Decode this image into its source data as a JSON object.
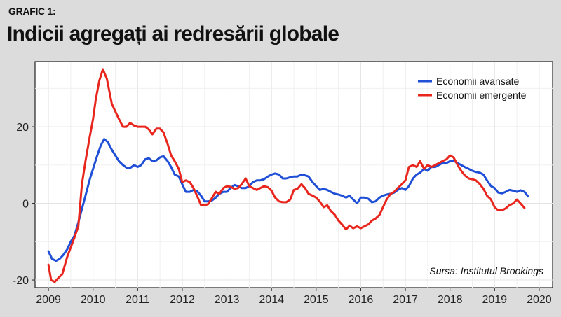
{
  "header": {
    "kicker": "GRAFIC 1:",
    "title": "Indicii agregați ai redresării globale"
  },
  "chart_data": {
    "type": "line",
    "title": "Indicii agregați ai redresării globale",
    "xlabel": "",
    "ylabel": "",
    "xlim": [
      2008.7,
      2020.3
    ],
    "ylim": [
      -22,
      37
    ],
    "x_ticks": [
      "2009",
      "2010",
      "2011",
      "2012",
      "2013",
      "2014",
      "2015",
      "2016",
      "2017",
      "2018",
      "2019",
      "2020"
    ],
    "y_ticks": [
      "-20",
      "0",
      "20"
    ],
    "grid": true,
    "legend_position": "top-right",
    "source": "Sursa: Institutul Brookings",
    "series": [
      {
        "name": "Economii avansate",
        "color": "#1f4fd6",
        "points": [
          [
            2009.0,
            -12.5
          ],
          [
            2009.08,
            -14.5
          ],
          [
            2009.17,
            -15
          ],
          [
            2009.25,
            -14.5
          ],
          [
            2009.33,
            -13.5
          ],
          [
            2009.42,
            -12
          ],
          [
            2009.5,
            -10
          ],
          [
            2009.58,
            -8.5
          ],
          [
            2009.67,
            -5
          ],
          [
            2009.75,
            -1.5
          ],
          [
            2009.83,
            2
          ],
          [
            2009.92,
            6
          ],
          [
            2010.0,
            9
          ],
          [
            2010.08,
            12
          ],
          [
            2010.17,
            15
          ],
          [
            2010.25,
            16.8
          ],
          [
            2010.33,
            16
          ],
          [
            2010.42,
            14
          ],
          [
            2010.5,
            12.5
          ],
          [
            2010.58,
            11
          ],
          [
            2010.67,
            10
          ],
          [
            2010.75,
            9.3
          ],
          [
            2010.83,
            9.2
          ],
          [
            2010.92,
            10
          ],
          [
            2011.0,
            9.5
          ],
          [
            2011.08,
            10
          ],
          [
            2011.17,
            11.5
          ],
          [
            2011.25,
            11.8
          ],
          [
            2011.33,
            11
          ],
          [
            2011.42,
            11.2
          ],
          [
            2011.5,
            12
          ],
          [
            2011.58,
            12.3
          ],
          [
            2011.67,
            11
          ],
          [
            2011.75,
            9.5
          ],
          [
            2011.83,
            7.5
          ],
          [
            2011.92,
            7
          ],
          [
            2012.0,
            5
          ],
          [
            2012.08,
            3
          ],
          [
            2012.17,
            3
          ],
          [
            2012.25,
            3.5
          ],
          [
            2012.33,
            3.2
          ],
          [
            2012.42,
            2
          ],
          [
            2012.5,
            0.5
          ],
          [
            2012.58,
            0.5
          ],
          [
            2012.67,
            0.8
          ],
          [
            2012.75,
            1.5
          ],
          [
            2012.83,
            2.5
          ],
          [
            2012.92,
            3
          ],
          [
            2013.0,
            3
          ],
          [
            2013.08,
            4
          ],
          [
            2013.17,
            4.8
          ],
          [
            2013.25,
            4.5
          ],
          [
            2013.33,
            4
          ],
          [
            2013.42,
            4
          ],
          [
            2013.5,
            4.5
          ],
          [
            2013.58,
            5.5
          ],
          [
            2013.67,
            6
          ],
          [
            2013.75,
            6
          ],
          [
            2013.83,
            6.3
          ],
          [
            2013.92,
            7
          ],
          [
            2014.0,
            7.5
          ],
          [
            2014.08,
            7.8
          ],
          [
            2014.17,
            7.5
          ],
          [
            2014.25,
            6.5
          ],
          [
            2014.33,
            6.5
          ],
          [
            2014.42,
            6.8
          ],
          [
            2014.5,
            7
          ],
          [
            2014.58,
            7
          ],
          [
            2014.67,
            7.5
          ],
          [
            2014.75,
            7.3
          ],
          [
            2014.83,
            7
          ],
          [
            2014.92,
            5.5
          ],
          [
            2015.0,
            4.5
          ],
          [
            2015.08,
            3.5
          ],
          [
            2015.17,
            3.8
          ],
          [
            2015.25,
            3.5
          ],
          [
            2015.33,
            3
          ],
          [
            2015.42,
            2.5
          ],
          [
            2015.5,
            2.3
          ],
          [
            2015.58,
            2
          ],
          [
            2015.67,
            1.5
          ],
          [
            2015.75,
            2
          ],
          [
            2015.83,
            1
          ],
          [
            2015.92,
            0
          ],
          [
            2016.0,
            1.5
          ],
          [
            2016.08,
            1.5
          ],
          [
            2016.17,
            1.2
          ],
          [
            2016.25,
            0.3
          ],
          [
            2016.33,
            0.5
          ],
          [
            2016.42,
            1.5
          ],
          [
            2016.5,
            2
          ],
          [
            2016.58,
            2.3
          ],
          [
            2016.67,
            2.5
          ],
          [
            2016.75,
            2.8
          ],
          [
            2016.83,
            3.5
          ],
          [
            2016.92,
            4
          ],
          [
            2017.0,
            3.5
          ],
          [
            2017.08,
            4.5
          ],
          [
            2017.17,
            6.5
          ],
          [
            2017.25,
            7.5
          ],
          [
            2017.33,
            8
          ],
          [
            2017.42,
            9
          ],
          [
            2017.5,
            8.5
          ],
          [
            2017.58,
            9.5
          ],
          [
            2017.67,
            9.5
          ],
          [
            2017.75,
            10
          ],
          [
            2017.83,
            10.5
          ],
          [
            2017.92,
            10.5
          ],
          [
            2018.0,
            11
          ],
          [
            2018.08,
            11.2
          ],
          [
            2018.17,
            10.5
          ],
          [
            2018.25,
            10
          ],
          [
            2018.33,
            9.5
          ],
          [
            2018.42,
            9
          ],
          [
            2018.5,
            8.5
          ],
          [
            2018.58,
            8.2
          ],
          [
            2018.67,
            8
          ],
          [
            2018.75,
            7.5
          ],
          [
            2018.83,
            6
          ],
          [
            2018.92,
            4.5
          ],
          [
            2019.0,
            4
          ],
          [
            2019.08,
            2.8
          ],
          [
            2019.17,
            2.6
          ],
          [
            2019.25,
            3
          ],
          [
            2019.33,
            3.5
          ],
          [
            2019.42,
            3.3
          ],
          [
            2019.5,
            3
          ],
          [
            2019.58,
            3.4
          ],
          [
            2019.67,
            3
          ],
          [
            2019.75,
            1.8
          ]
        ]
      },
      {
        "name": "Economii emergente",
        "color": "#e8261d",
        "points": [
          [
            2009.0,
            -16
          ],
          [
            2009.06,
            -20
          ],
          [
            2009.14,
            -20.5
          ],
          [
            2009.22,
            -19.5
          ],
          [
            2009.31,
            -18.5
          ],
          [
            2009.42,
            -14
          ],
          [
            2009.5,
            -11.5
          ],
          [
            2009.58,
            -9
          ],
          [
            2009.67,
            -6
          ],
          [
            2009.75,
            5
          ],
          [
            2009.83,
            11
          ],
          [
            2009.92,
            17
          ],
          [
            2010.0,
            22
          ],
          [
            2010.06,
            27
          ],
          [
            2010.14,
            32
          ],
          [
            2010.22,
            35
          ],
          [
            2010.31,
            32.5
          ],
          [
            2010.42,
            26
          ],
          [
            2010.5,
            24
          ],
          [
            2010.58,
            22
          ],
          [
            2010.67,
            20
          ],
          [
            2010.75,
            20
          ],
          [
            2010.83,
            21
          ],
          [
            2010.92,
            20.3
          ],
          [
            2011.0,
            20
          ],
          [
            2011.08,
            20
          ],
          [
            2011.17,
            20
          ],
          [
            2011.25,
            19.3
          ],
          [
            2011.33,
            18
          ],
          [
            2011.42,
            19.5
          ],
          [
            2011.5,
            19.5
          ],
          [
            2011.58,
            18.5
          ],
          [
            2011.67,
            15.5
          ],
          [
            2011.75,
            12.5
          ],
          [
            2011.83,
            11
          ],
          [
            2011.92,
            9
          ],
          [
            2012.0,
            5.5
          ],
          [
            2012.08,
            6
          ],
          [
            2012.17,
            5.5
          ],
          [
            2012.25,
            4
          ],
          [
            2012.33,
            2
          ],
          [
            2012.42,
            -0.5
          ],
          [
            2012.5,
            -0.5
          ],
          [
            2012.58,
            -0.2
          ],
          [
            2012.67,
            1.5
          ],
          [
            2012.75,
            3
          ],
          [
            2012.83,
            2.5
          ],
          [
            2012.92,
            4
          ],
          [
            2013.0,
            4.5
          ],
          [
            2013.08,
            4.3
          ],
          [
            2013.17,
            3.8
          ],
          [
            2013.25,
            4
          ],
          [
            2013.33,
            5
          ],
          [
            2013.42,
            6.5
          ],
          [
            2013.5,
            4.5
          ],
          [
            2013.58,
            4
          ],
          [
            2013.67,
            3.5
          ],
          [
            2013.75,
            4
          ],
          [
            2013.83,
            4.5
          ],
          [
            2013.92,
            4.2
          ],
          [
            2014.0,
            3.3
          ],
          [
            2014.08,
            1.5
          ],
          [
            2014.17,
            0.5
          ],
          [
            2014.25,
            0.3
          ],
          [
            2014.33,
            0.3
          ],
          [
            2014.42,
            1
          ],
          [
            2014.5,
            3.5
          ],
          [
            2014.58,
            3.8
          ],
          [
            2014.67,
            5
          ],
          [
            2014.75,
            4
          ],
          [
            2014.83,
            2.5
          ],
          [
            2014.92,
            2
          ],
          [
            2015.0,
            1.5
          ],
          [
            2015.08,
            0.5
          ],
          [
            2015.17,
            -1
          ],
          [
            2015.25,
            -0.5
          ],
          [
            2015.33,
            -2
          ],
          [
            2015.42,
            -3
          ],
          [
            2015.5,
            -4.5
          ],
          [
            2015.58,
            -5.5
          ],
          [
            2015.67,
            -6.8
          ],
          [
            2015.75,
            -5.8
          ],
          [
            2015.83,
            -6.5
          ],
          [
            2015.92,
            -6
          ],
          [
            2016.0,
            -6.5
          ],
          [
            2016.08,
            -6
          ],
          [
            2016.17,
            -5.5
          ],
          [
            2016.25,
            -4.5
          ],
          [
            2016.33,
            -4
          ],
          [
            2016.42,
            -3
          ],
          [
            2016.5,
            -1
          ],
          [
            2016.58,
            1
          ],
          [
            2016.67,
            2.5
          ],
          [
            2016.75,
            3
          ],
          [
            2016.83,
            4
          ],
          [
            2016.92,
            5
          ],
          [
            2017.0,
            6
          ],
          [
            2017.08,
            9.5
          ],
          [
            2017.17,
            10
          ],
          [
            2017.25,
            9.5
          ],
          [
            2017.33,
            11
          ],
          [
            2017.42,
            9
          ],
          [
            2017.5,
            10
          ],
          [
            2017.58,
            9.5
          ],
          [
            2017.67,
            10
          ],
          [
            2017.75,
            10.5
          ],
          [
            2017.83,
            11
          ],
          [
            2017.92,
            11.5
          ],
          [
            2018.0,
            12.5
          ],
          [
            2018.08,
            12
          ],
          [
            2018.17,
            10
          ],
          [
            2018.25,
            8.5
          ],
          [
            2018.33,
            7.3
          ],
          [
            2018.42,
            6.5
          ],
          [
            2018.5,
            6.3
          ],
          [
            2018.58,
            6
          ],
          [
            2018.67,
            5
          ],
          [
            2018.75,
            3.8
          ],
          [
            2018.83,
            2
          ],
          [
            2018.92,
            1
          ],
          [
            2019.0,
            -1
          ],
          [
            2019.08,
            -1.8
          ],
          [
            2019.17,
            -1.8
          ],
          [
            2019.25,
            -1.3
          ],
          [
            2019.33,
            -0.5
          ],
          [
            2019.42,
            0
          ],
          [
            2019.5,
            1
          ],
          [
            2019.58,
            0
          ],
          [
            2019.67,
            -1.2
          ]
        ]
      }
    ]
  }
}
